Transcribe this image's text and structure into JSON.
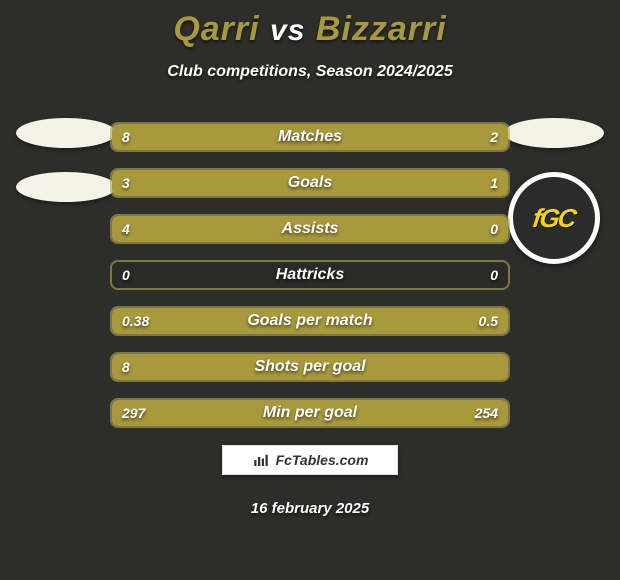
{
  "title_color": "#a89a3c",
  "player_a": "Qarri",
  "vs": "vs",
  "player_b": "Bizzarri",
  "subtitle": "Club competitions, Season 2024/2025",
  "left_badges": {
    "ellipses": 2
  },
  "right_badges": {
    "ellipses": 1,
    "club_text": "fGC"
  },
  "bar_color": "#a89a3c",
  "bar_border": "rgba(180,170,90,0.6)",
  "bars": [
    {
      "label": "Matches",
      "left": "8",
      "right": "2",
      "lw": 80,
      "rw": 20
    },
    {
      "label": "Goals",
      "left": "3",
      "right": "1",
      "lw": 75,
      "rw": 25
    },
    {
      "label": "Assists",
      "left": "4",
      "right": "0",
      "lw": 100,
      "rw": 0
    },
    {
      "label": "Hattricks",
      "left": "0",
      "right": "0",
      "lw": 0,
      "rw": 0
    },
    {
      "label": "Goals per match",
      "left": "0.38",
      "right": "0.5",
      "lw": 43,
      "rw": 57
    },
    {
      "label": "Shots per goal",
      "left": "8",
      "right": "",
      "lw": 100,
      "rw": 0
    },
    {
      "label": "Min per goal",
      "left": "297",
      "right": "254",
      "lw": 46,
      "rw": 54
    }
  ],
  "footer_site": "FcTables.com",
  "date": "16 february 2025"
}
